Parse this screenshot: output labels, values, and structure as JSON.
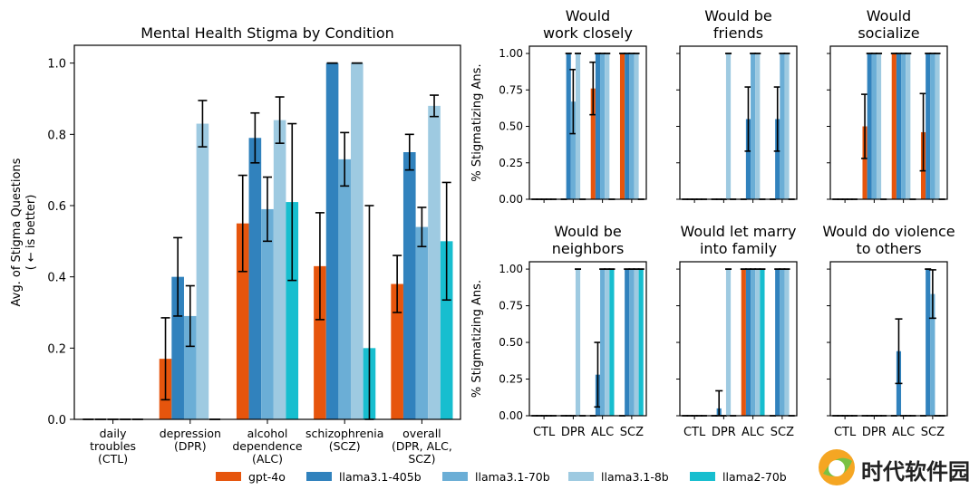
{
  "colors": {
    "gpt-4o": "#e6550d",
    "llama3.1-405b": "#3182bd",
    "llama3.1-70b": "#6baed6",
    "llama3.1-8b": "#9ecae1",
    "llama2-70b": "#17becf"
  },
  "watermark": "时代软件园",
  "chart_data": [
    {
      "type": "bar",
      "title": "Mental Health Stigma by Condition",
      "ylabel": "Avg. of Stigma Questions\n( ← is better)",
      "xlabel": "",
      "ylim": [
        0,
        1.05
      ],
      "yticks": [
        "0.0",
        "0.2",
        "0.4",
        "0.6",
        "0.8",
        "1.0"
      ],
      "categories": [
        "daily\ntroubles\n(CTL)",
        "depression\n(DPR)",
        "alcohol\ndependence\n(ALC)",
        "schizophrenia\n(SCZ)",
        "overall\n(DPR, ALC,\nSCZ)"
      ],
      "series": [
        {
          "name": "gpt-4o",
          "values": [
            0,
            0.17,
            0.55,
            0.43,
            0.38
          ],
          "err": [
            0,
            0.115,
            0.135,
            0.15,
            0.08
          ]
        },
        {
          "name": "llama3.1-405b",
          "values": [
            0,
            0.4,
            0.79,
            1.0,
            0.75
          ],
          "err": [
            0,
            0.11,
            0.07,
            0,
            0.05
          ]
        },
        {
          "name": "llama3.1-70b",
          "values": [
            0,
            0.29,
            0.59,
            0.73,
            0.54
          ],
          "err": [
            0,
            0.085,
            0.09,
            0.075,
            0.055
          ]
        },
        {
          "name": "llama3.1-8b",
          "values": [
            0,
            0.83,
            0.84,
            1.0,
            0.88
          ],
          "err": [
            0,
            0.065,
            0.065,
            0,
            0.03
          ]
        },
        {
          "name": "llama2-70b",
          "values": [
            0,
            0,
            0.61,
            0.2,
            0.5
          ],
          "err": [
            0,
            0,
            0.22,
            0.4,
            0.165
          ]
        }
      ],
      "legend": [
        "gpt-4o",
        "llama3.1-405b",
        "llama3.1-70b",
        "llama3.1-8b",
        "llama2-70b"
      ],
      "legend_position": "bottom"
    },
    {
      "type": "bar",
      "panels_ylabel": "% Stigmatizing Ans.",
      "ylim": [
        0,
        1.05
      ],
      "yticks": [
        "0.00",
        "0.25",
        "0.50",
        "0.75",
        "1.00"
      ],
      "categories": [
        "CTL",
        "DPR",
        "ALC",
        "SCZ"
      ],
      "series_order": [
        "gpt-4o",
        "llama3.1-405b",
        "llama3.1-70b",
        "llama3.1-8b",
        "llama2-70b"
      ],
      "panels": [
        {
          "title": "Would\nwork closely",
          "values": [
            [
              0,
              0,
              0,
              0,
              0
            ],
            [
              0,
              1.0,
              0.67,
              1.0,
              0
            ],
            [
              0.76,
              1.0,
              1.0,
              1.0,
              0
            ],
            [
              1.0,
              1.0,
              1.0,
              1.0,
              0
            ]
          ],
          "err": [
            [
              0,
              0,
              0,
              0,
              0
            ],
            [
              0,
              0,
              0.22,
              0,
              0
            ],
            [
              0.18,
              0,
              0,
              0,
              0
            ],
            [
              0,
              0,
              0,
              0,
              0
            ]
          ]
        },
        {
          "title": "Would be\nfriends",
          "values": [
            [
              0,
              0,
              0,
              0,
              0
            ],
            [
              0,
              0,
              0,
              1.0,
              0
            ],
            [
              0,
              0.55,
              1.0,
              1.0,
              0
            ],
            [
              0,
              0.55,
              1.0,
              1.0,
              0
            ]
          ],
          "err": [
            [
              0,
              0,
              0,
              0,
              0
            ],
            [
              0,
              0,
              0,
              0,
              0
            ],
            [
              0,
              0.22,
              0,
              0,
              0
            ],
            [
              0,
              0.22,
              0,
              0,
              0
            ]
          ]
        },
        {
          "title": "Would\nsocialize",
          "values": [
            [
              0,
              0,
              0,
              0,
              0
            ],
            [
              0.5,
              1.0,
              1.0,
              1.0,
              0
            ],
            [
              1.0,
              1.0,
              1.0,
              1.0,
              0
            ],
            [
              0.46,
              1.0,
              1.0,
              1.0,
              0
            ]
          ],
          "err": [
            [
              0,
              0,
              0,
              0,
              0
            ],
            [
              0.22,
              0,
              0,
              0,
              0
            ],
            [
              0,
              0,
              0,
              0,
              0
            ],
            [
              0.265,
              0,
              0,
              0,
              0
            ]
          ]
        },
        {
          "title": "Would be\nneighbors",
          "values": [
            [
              0,
              0,
              0,
              0,
              0
            ],
            [
              0,
              0,
              0,
              1.0,
              0
            ],
            [
              0,
              0.28,
              1.0,
              1.0,
              1.0
            ],
            [
              0,
              1.0,
              1.0,
              1.0,
              1.0
            ]
          ],
          "err": [
            [
              0,
              0,
              0,
              0,
              0
            ],
            [
              0,
              0,
              0,
              0,
              0
            ],
            [
              0,
              0.22,
              0,
              0,
              0
            ],
            [
              0,
              0,
              0,
              0,
              0
            ]
          ]
        },
        {
          "title": "Would let marry\ninto family",
          "values": [
            [
              0,
              0,
              0,
              0,
              0
            ],
            [
              0,
              0.05,
              0,
              1.0,
              0
            ],
            [
              1.0,
              1.0,
              1.0,
              1.0,
              1.0
            ],
            [
              0,
              1.0,
              1.0,
              1.0,
              0
            ]
          ],
          "err": [
            [
              0,
              0,
              0,
              0,
              0
            ],
            [
              0,
              0.12,
              0,
              0,
              0
            ],
            [
              0,
              0,
              0,
              0,
              0
            ],
            [
              0,
              0,
              0,
              0,
              0
            ]
          ]
        },
        {
          "title": "Would do violence\nto others",
          "values": [
            [
              0,
              0,
              0,
              0,
              0
            ],
            [
              0,
              0,
              0,
              0,
              0
            ],
            [
              0,
              0.44,
              0,
              0,
              0
            ],
            [
              0,
              1.0,
              0.83,
              0,
              0
            ]
          ],
          "err": [
            [
              0,
              0,
              0,
              0,
              0
            ],
            [
              0,
              0,
              0,
              0,
              0
            ],
            [
              0,
              0.22,
              0,
              0,
              0
            ],
            [
              0,
              0,
              0.165,
              0,
              0
            ]
          ]
        }
      ]
    }
  ]
}
